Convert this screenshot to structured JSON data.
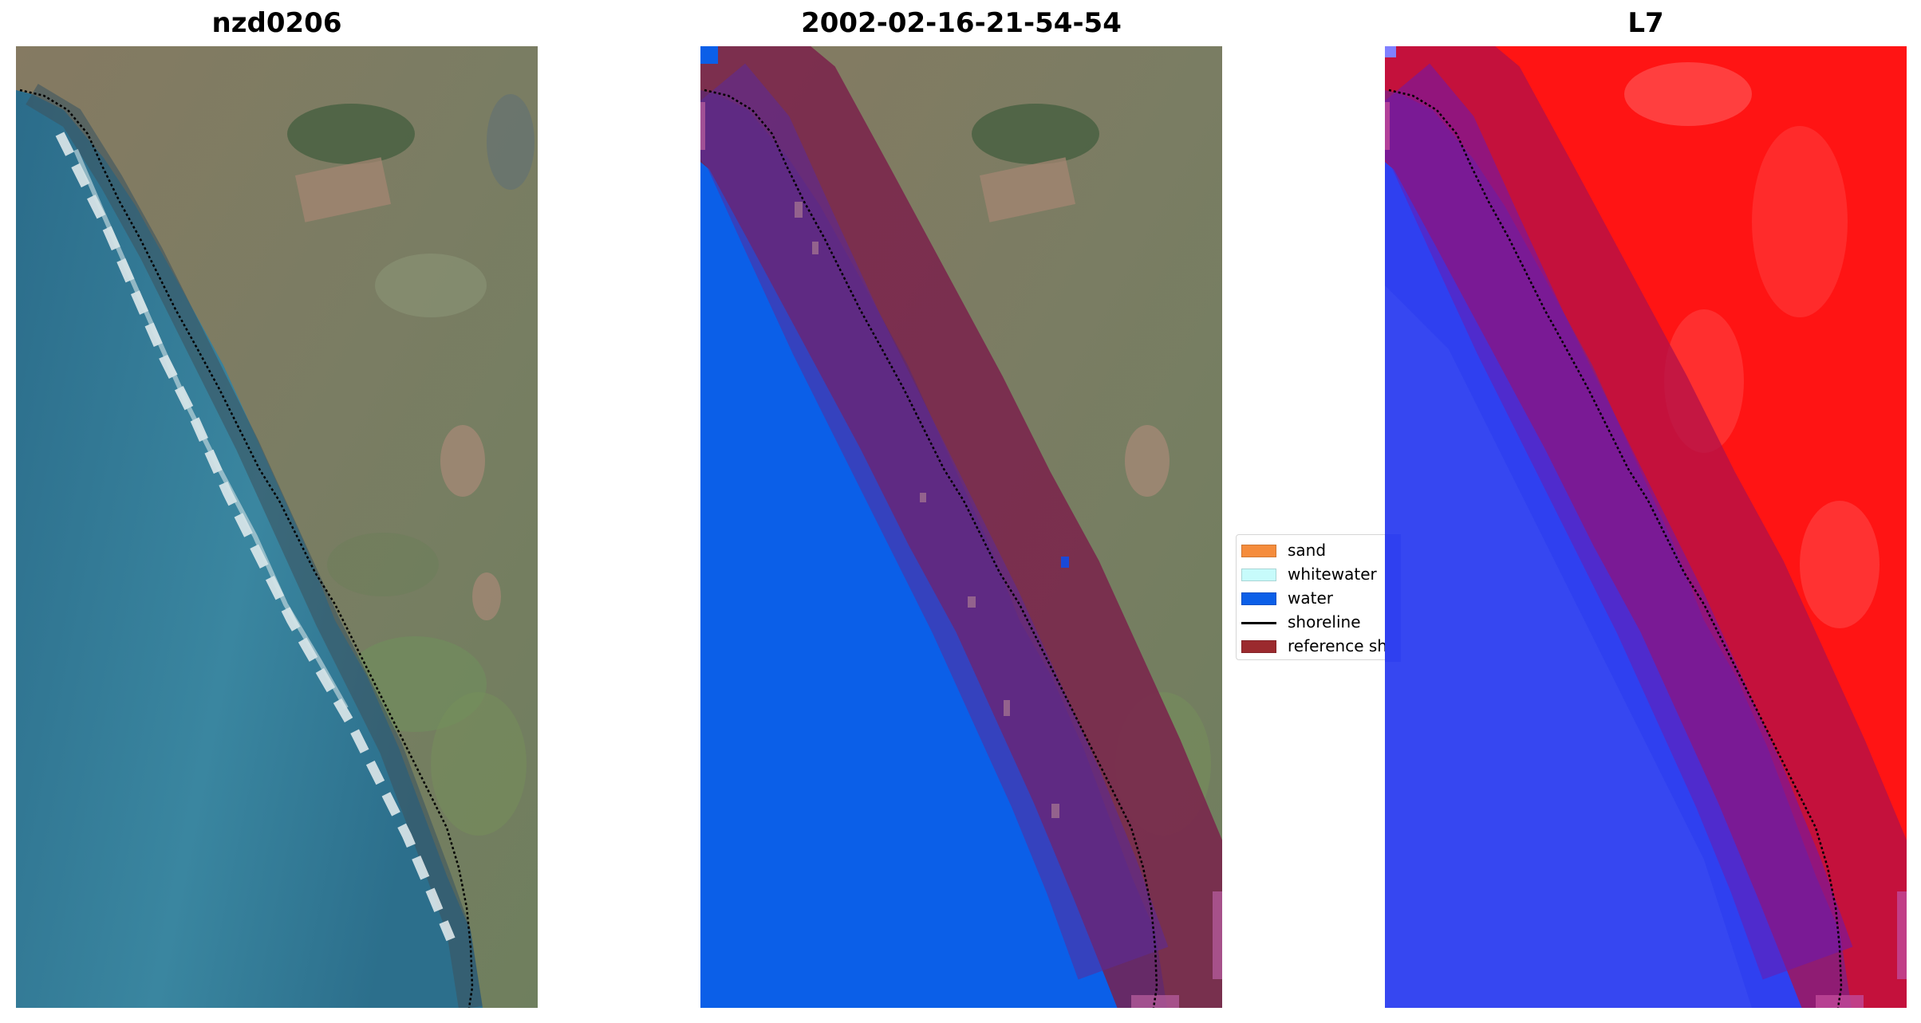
{
  "panels": [
    {
      "title": "nzd0206",
      "kind": "rgb-image"
    },
    {
      "title": "2002-02-16-21-54-54",
      "kind": "classified-image"
    },
    {
      "title": "L7",
      "kind": "index-image"
    }
  ],
  "legend": {
    "items": [
      {
        "label": "sand",
        "color": "#f58c3c",
        "kind": "swatch"
      },
      {
        "label": "whitewater",
        "color": "#c7fbfb",
        "kind": "swatch"
      },
      {
        "label": "water",
        "color": "#0b5fe8",
        "kind": "swatch"
      },
      {
        "label": "shoreline",
        "color": "#000000",
        "kind": "line"
      },
      {
        "label": "reference shoreline buffer",
        "color": "#9b2a2e",
        "kind": "swatch"
      }
    ]
  },
  "colors": {
    "sea_deep": "#2a6a8a",
    "sea_shallow": "#3d8ea6",
    "land": "#7b7c63",
    "water_class": "#0b5fe8",
    "buffer": "#8b1a2a",
    "index_high": "#ff1010",
    "index_low": "#2e3ef0"
  }
}
